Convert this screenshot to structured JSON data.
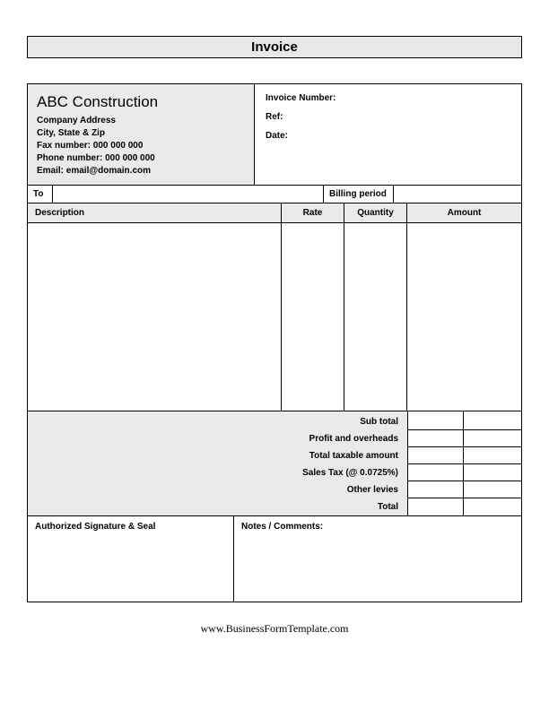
{
  "title": "Invoice",
  "company": {
    "name": "ABC Construction",
    "address": "Company Address",
    "city_state_zip": "City, State & Zip",
    "fax": "Fax number: 000 000 000",
    "phone": "Phone number: 000 000 000",
    "email": "Email: email@domain.com"
  },
  "meta": {
    "invoice_number_label": "Invoice Number:",
    "ref_label": "Ref:",
    "date_label": "Date:"
  },
  "to_row": {
    "to_label": "To",
    "billing_period_label": "Billing period"
  },
  "columns": {
    "description": "Description",
    "rate": "Rate",
    "quantity": "Quantity",
    "amount": "Amount"
  },
  "summary": {
    "sub_total": "Sub total",
    "profit_overheads": "Profit and overheads",
    "total_taxable": "Total taxable amount",
    "sales_tax": "Sales Tax (@ 0.0725%)",
    "other_levies": "Other levies",
    "total": "Total"
  },
  "footer": {
    "signature_label": "Authorized Signature & Seal",
    "notes_label": "Notes / Comments:"
  },
  "attribution": "www.BusinessFormTemplate.com",
  "colors": {
    "header_bg": "#eaeaea",
    "border": "#000000",
    "background": "#ffffff"
  }
}
